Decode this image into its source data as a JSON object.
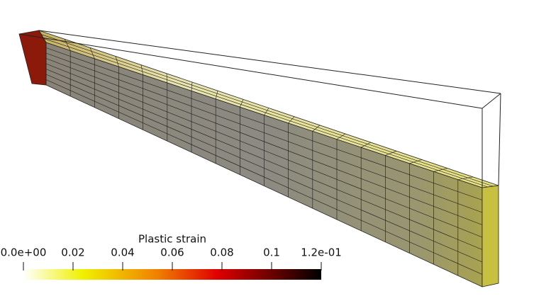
{
  "colorbar": {
    "title": "Plastic strain",
    "range": [
      0,
      0.12
    ],
    "ticks": [
      {
        "value": 0,
        "label": "0.0e+00"
      },
      0.02,
      0.04,
      0.06,
      0.08,
      0.1,
      {
        "value": 0.12,
        "label": "1.2e-01"
      }
    ]
  }
}
